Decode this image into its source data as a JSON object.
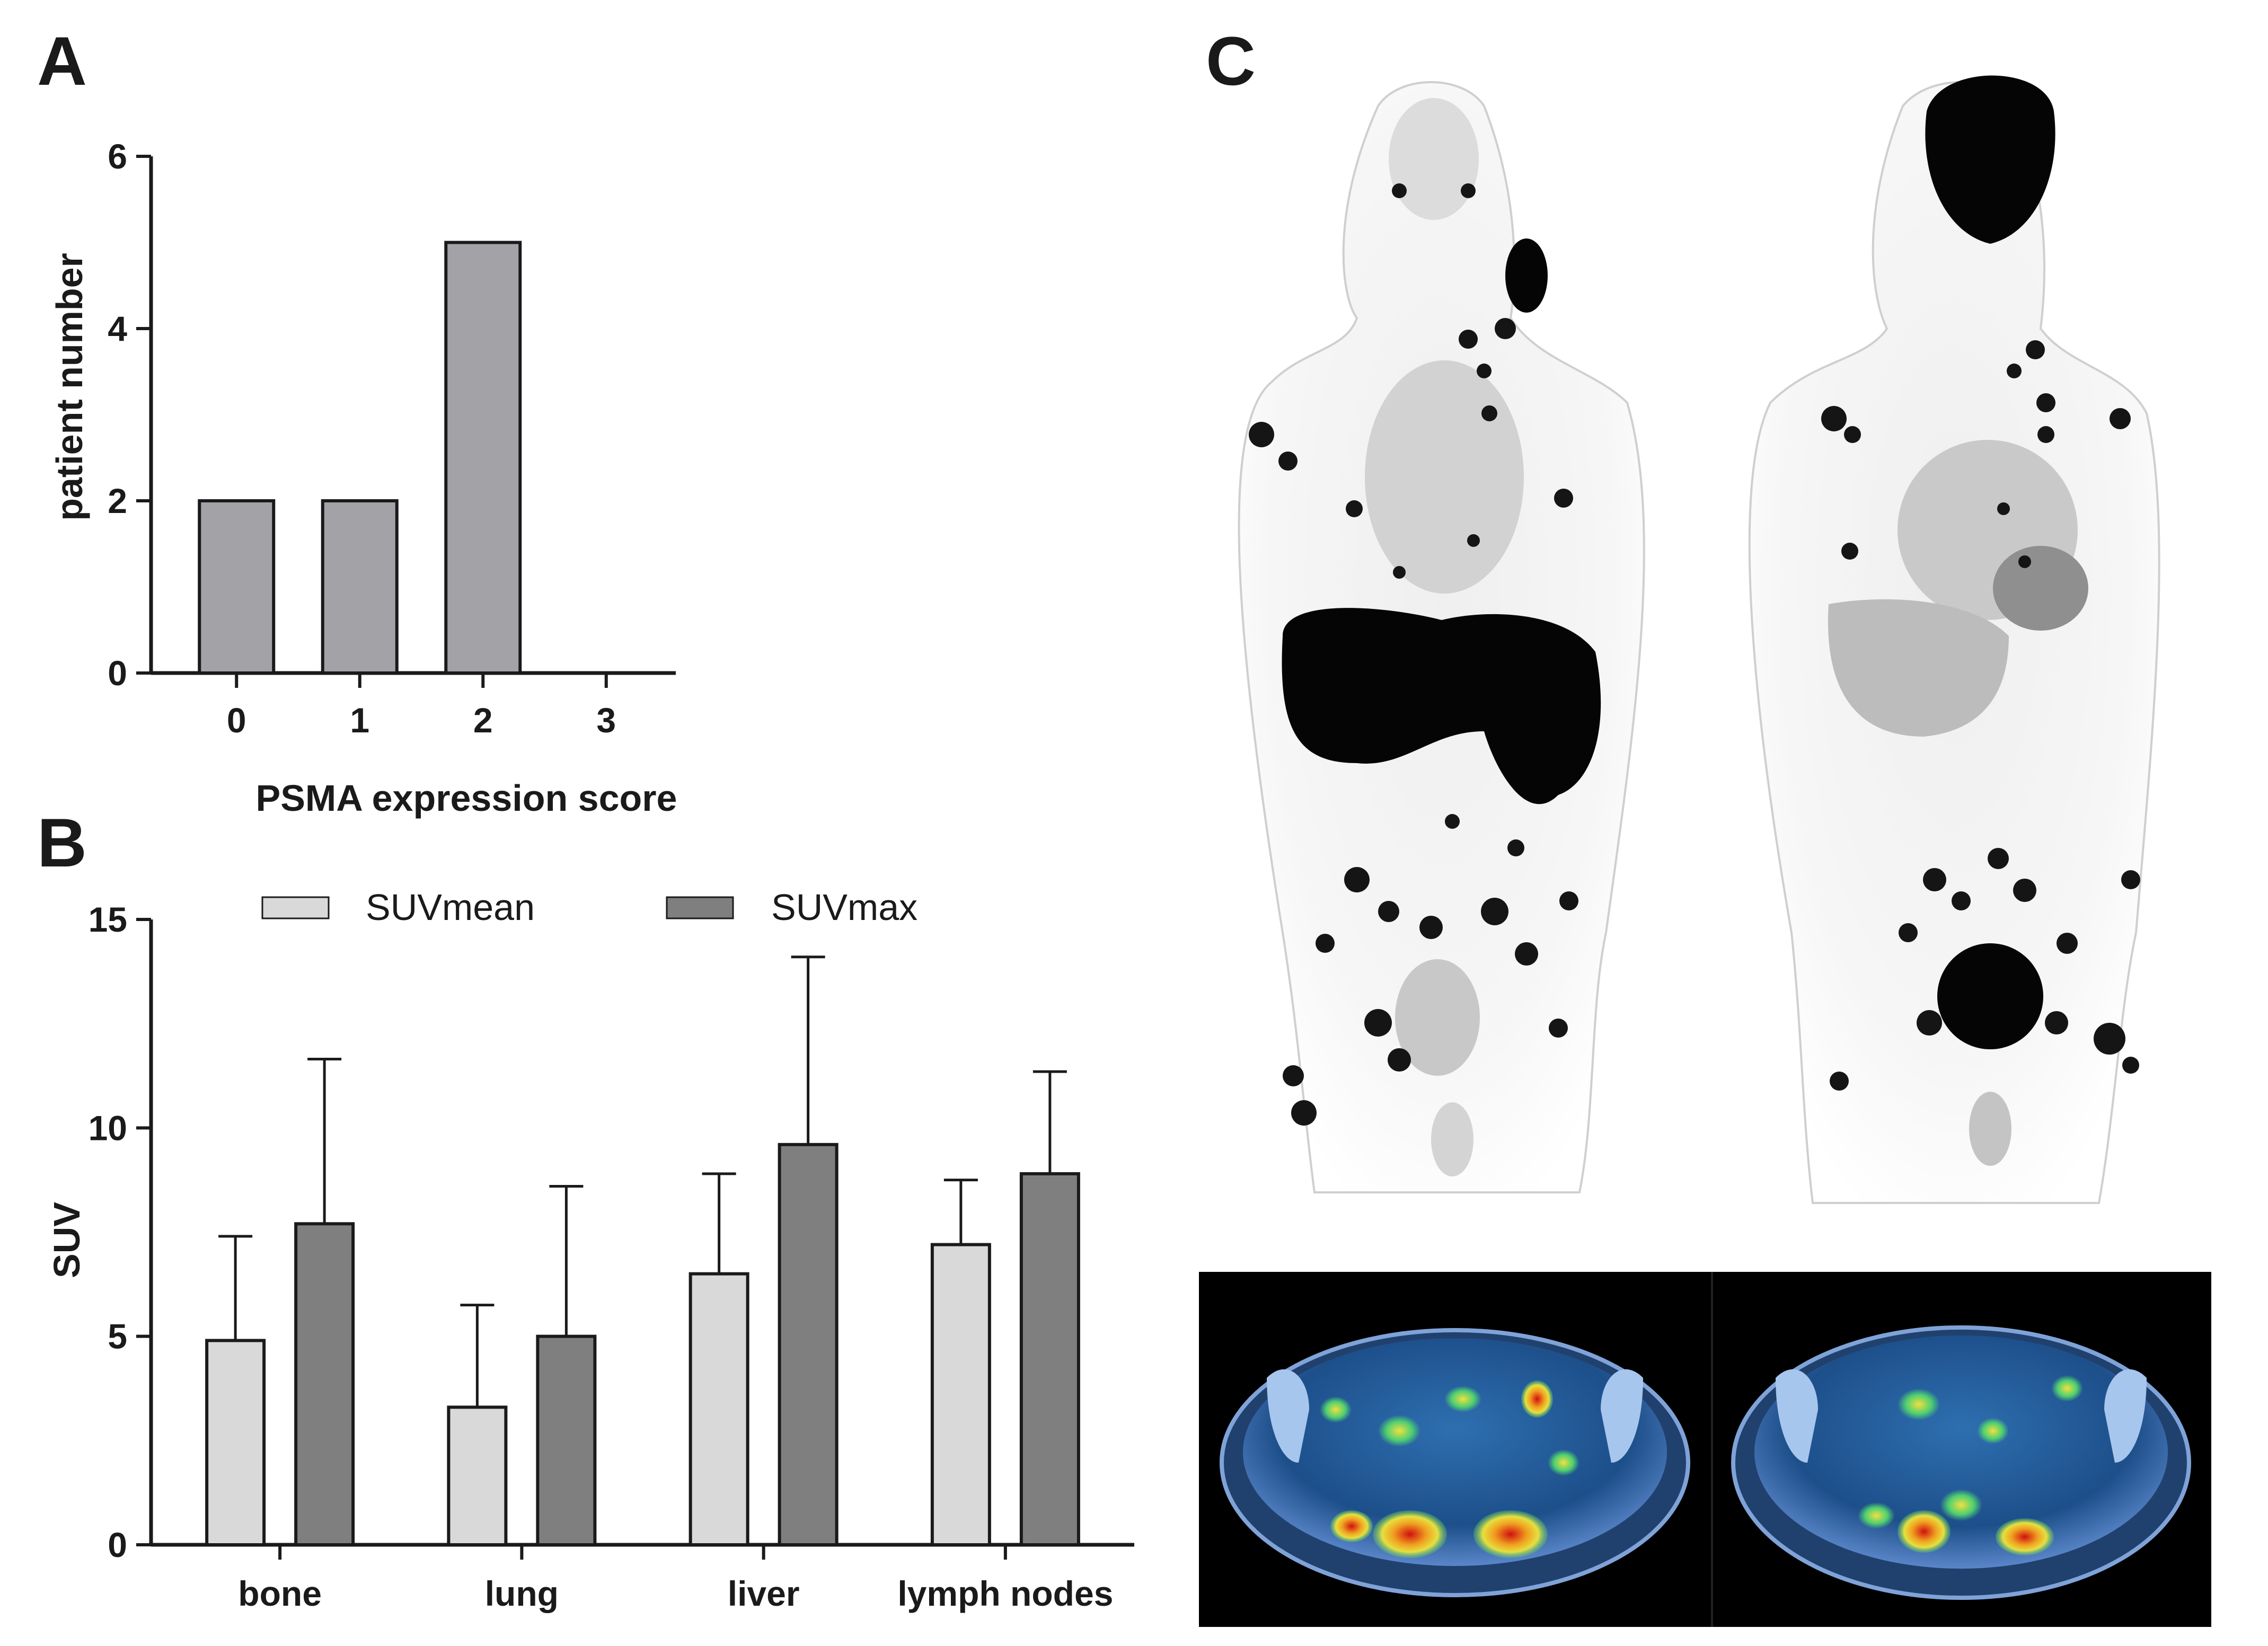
{
  "panels": {
    "a": "A",
    "b": "B",
    "c": "C"
  },
  "chart_data": [
    {
      "type": "bar",
      "panel": "A",
      "categories": [
        "0",
        "1",
        "2",
        "3"
      ],
      "values": [
        2,
        2,
        5,
        0
      ],
      "xlabel": "PSMA expression score",
      "ylabel": "patient number",
      "ylim": [
        0,
        6
      ],
      "yticks": [
        "0",
        "2",
        "4",
        "6"
      ],
      "bar_color": "#a3a3a7"
    },
    {
      "type": "bar",
      "panel": "B",
      "categories": [
        "bone",
        "lung",
        "liver",
        "lymph nodes"
      ],
      "series": [
        {
          "name": "SUVmean",
          "values": [
            4.9,
            3.3,
            6.5,
            7.2
          ],
          "error": [
            2.5,
            2.45,
            2.4,
            1.55
          ],
          "color": "#d9d9d9"
        },
        {
          "name": "SUVmax",
          "values": [
            7.7,
            5.0,
            9.6,
            8.9
          ],
          "error": [
            3.95,
            3.6,
            4.5,
            2.45
          ],
          "color": "#7f7f7f"
        }
      ],
      "xlabel": "",
      "ylabel": "SUV",
      "ylim": [
        0,
        15
      ],
      "yticks": [
        "0",
        "5",
        "10",
        "15"
      ],
      "legend": "top"
    }
  ],
  "images": {
    "mip_left": "whole-body PET MIP, grayscale",
    "mip_right": "whole-body PET MIP, grayscale",
    "fusion_left": "axial PET/CT fusion, pelvis",
    "fusion_right": "axial PET/CT fusion, pelvis"
  },
  "colors": {
    "axis": "#1a1a1a",
    "black_panel": "#000000"
  }
}
